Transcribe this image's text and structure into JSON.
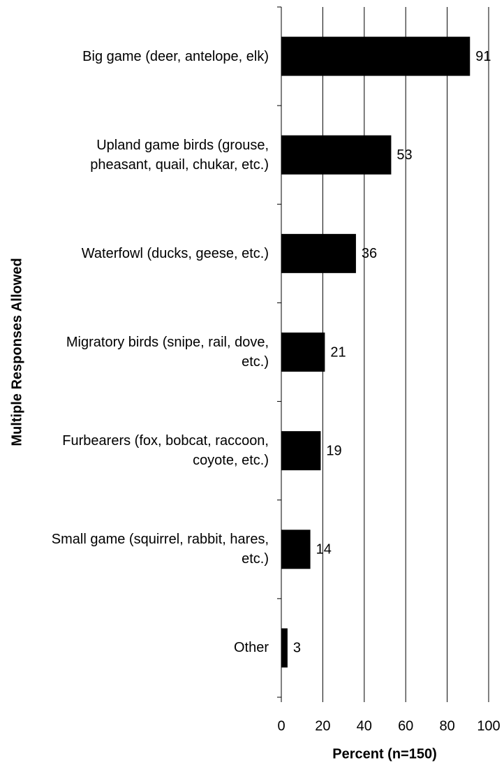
{
  "chart_data": {
    "type": "bar",
    "orientation": "horizontal",
    "categories": [
      "Big game (deer, antelope, elk)",
      "Upland game birds (grouse, pheasant, quail, chukar, etc.)",
      "Waterfowl (ducks, geese, etc.)",
      "Migratory birds (snipe, rail, dove, etc.)",
      "Furbearers (fox, bobcat, raccoon, coyote, etc.)",
      "Small game (squirrel, rabbit, hares, etc.)",
      "Other"
    ],
    "values": [
      91,
      53,
      36,
      21,
      19,
      14,
      3
    ],
    "color": "#000000",
    "xlabel": "Percent (n=150)",
    "ylabel": "Multiple Responses Allowed",
    "xlim": [
      0,
      100
    ],
    "xticks": [
      0,
      20,
      40,
      60,
      80,
      100
    ],
    "grid": true
  }
}
